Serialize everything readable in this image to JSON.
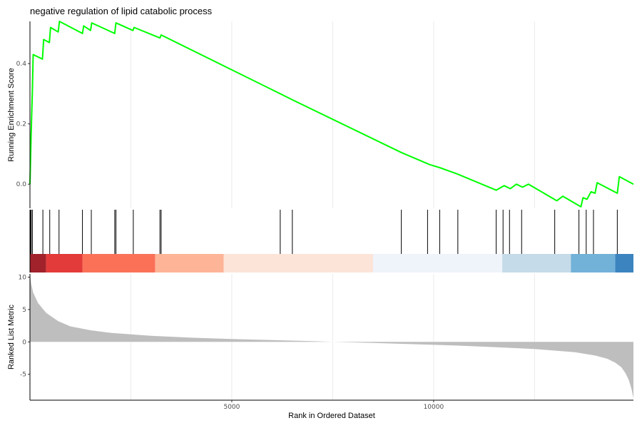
{
  "title": "negative regulation of lipid catabolic process",
  "chart_data": [
    {
      "type": "line",
      "panel": "running-enrichment",
      "ylabel": "Running Enrichment Score",
      "xlim": [
        0,
        14950
      ],
      "ylim": [
        -0.08,
        0.54
      ],
      "yticks": [
        "0.0",
        "0.2",
        "0.4"
      ],
      "ytick_values": [
        0.0,
        0.2,
        0.4
      ],
      "series_color": "#00ff00",
      "points": [
        [
          0,
          0.0
        ],
        [
          30,
          0.17
        ],
        [
          60,
          0.31
        ],
        [
          80,
          0.43
        ],
        [
          310,
          0.415
        ],
        [
          340,
          0.48
        ],
        [
          480,
          0.47
        ],
        [
          510,
          0.52
        ],
        [
          700,
          0.505
        ],
        [
          730,
          0.54
        ],
        [
          1300,
          0.5
        ],
        [
          1330,
          0.525
        ],
        [
          1500,
          0.51
        ],
        [
          1530,
          0.535
        ],
        [
          2100,
          0.5
        ],
        [
          2130,
          0.535
        ],
        [
          2550,
          0.51
        ],
        [
          2580,
          0.52
        ],
        [
          3220,
          0.485
        ],
        [
          3250,
          0.495
        ],
        [
          6200,
          0.3
        ],
        [
          6500,
          0.28
        ],
        [
          9200,
          0.105
        ],
        [
          9900,
          0.065
        ],
        [
          10150,
          0.055
        ],
        [
          10600,
          0.033
        ],
        [
          11550,
          -0.02
        ],
        [
          11750,
          -0.005
        ],
        [
          11900,
          -0.015
        ],
        [
          12050,
          0.0
        ],
        [
          12200,
          -0.01
        ],
        [
          12350,
          0.0
        ],
        [
          13050,
          -0.055
        ],
        [
          13200,
          -0.04
        ],
        [
          13650,
          -0.075
        ],
        [
          13700,
          -0.045
        ],
        [
          13800,
          -0.05
        ],
        [
          13900,
          -0.025
        ],
        [
          14000,
          -0.03
        ],
        [
          14050,
          0.005
        ],
        [
          14550,
          -0.03
        ],
        [
          14600,
          0.025
        ],
        [
          14950,
          0.0
        ]
      ]
    },
    {
      "type": "rug",
      "panel": "gene-hits",
      "hit_ranks": [
        15,
        30,
        60,
        320,
        490,
        720,
        1300,
        1520,
        2100,
        2130,
        2560,
        3220,
        3250,
        6200,
        6500,
        9200,
        9850,
        10150,
        10600,
        11550,
        11720,
        11880,
        12180,
        13000,
        13600,
        13780,
        13960,
        14550
      ],
      "color_bands": [
        {
          "from": 0,
          "to": 400,
          "color": "#a1222b"
        },
        {
          "from": 400,
          "to": 1300,
          "color": "#e33b39"
        },
        {
          "from": 1300,
          "to": 3100,
          "color": "#fa7158"
        },
        {
          "from": 3100,
          "to": 4800,
          "color": "#fdb497"
        },
        {
          "from": 4800,
          "to": 8500,
          "color": "#fde4d8"
        },
        {
          "from": 8500,
          "to": 11700,
          "color": "#eff3fa"
        },
        {
          "from": 11700,
          "to": 13400,
          "color": "#c5dbe9"
        },
        {
          "from": 13400,
          "to": 14500,
          "color": "#72b1d8"
        },
        {
          "from": 14500,
          "to": 14950,
          "color": "#3b84c0"
        }
      ]
    },
    {
      "type": "area",
      "panel": "ranked-list",
      "xlabel": "Rank in Ordered Dataset",
      "ylabel": "Ranked List Metric",
      "xlim": [
        0,
        14950
      ],
      "ylim": [
        -9,
        10.5
      ],
      "xticks": [
        "5000",
        "10000"
      ],
      "xtick_values": [
        5000,
        10000
      ],
      "yticks": [
        "10",
        "5",
        "0",
        "-5"
      ],
      "ytick_values": [
        10,
        5,
        0,
        -5
      ],
      "fill_color": "#bebebe",
      "points": [
        [
          0,
          10.5
        ],
        [
          30,
          9.0
        ],
        [
          80,
          7.6
        ],
        [
          200,
          6.0
        ],
        [
          400,
          4.5
        ],
        [
          700,
          3.2
        ],
        [
          1000,
          2.4
        ],
        [
          1500,
          1.8
        ],
        [
          2000,
          1.4
        ],
        [
          3000,
          0.95
        ],
        [
          4000,
          0.65
        ],
        [
          5000,
          0.45
        ],
        [
          6000,
          0.28
        ],
        [
          7000,
          0.12
        ],
        [
          7500,
          0.0
        ],
        [
          8500,
          -0.15
        ],
        [
          9500,
          -0.35
        ],
        [
          10500,
          -0.55
        ],
        [
          11500,
          -0.8
        ],
        [
          12500,
          -1.1
        ],
        [
          13500,
          -1.6
        ],
        [
          14000,
          -2.1
        ],
        [
          14300,
          -2.6
        ],
        [
          14500,
          -3.2
        ],
        [
          14650,
          -3.9
        ],
        [
          14750,
          -4.8
        ],
        [
          14830,
          -5.8
        ],
        [
          14900,
          -7.2
        ],
        [
          14950,
          -8.7
        ]
      ]
    }
  ]
}
